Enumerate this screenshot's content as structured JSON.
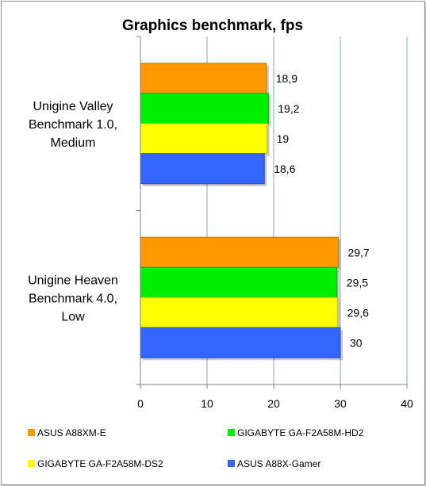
{
  "chart_data": {
    "type": "bar",
    "orientation": "horizontal",
    "title": "Graphics benchmark,  fps",
    "categories": [
      [
        "Unigine Valley",
        "Benchmark 1.0,",
        "Medium"
      ],
      [
        "Unigine Heaven",
        "Benchmark 4.0,",
        "Low"
      ]
    ],
    "series": [
      {
        "name": "ASUS A88XM-E",
        "color": "#ff9900",
        "values": [
          18.9,
          29.7
        ],
        "labels": [
          "18,9",
          "29,7"
        ]
      },
      {
        "name": "GIGABYTE GA-F2A58M-HD2",
        "color": "#00ee00",
        "values": [
          19.2,
          29.5
        ],
        "labels": [
          "19,2",
          "29,5"
        ]
      },
      {
        "name": "GIGABYTE GA-F2A58M-DS2",
        "color": "#ffff00",
        "values": [
          19,
          29.6
        ],
        "labels": [
          "19",
          "29,6"
        ]
      },
      {
        "name": "ASUS A88X-Gamer",
        "color": "#3366ff",
        "values": [
          18.6,
          30
        ],
        "labels": [
          "18,6",
          "30"
        ]
      }
    ],
    "xlim": [
      0,
      40
    ],
    "xticks": [
      0,
      10,
      20,
      30,
      40
    ],
    "grid": "vertical",
    "legend": "bottom"
  }
}
